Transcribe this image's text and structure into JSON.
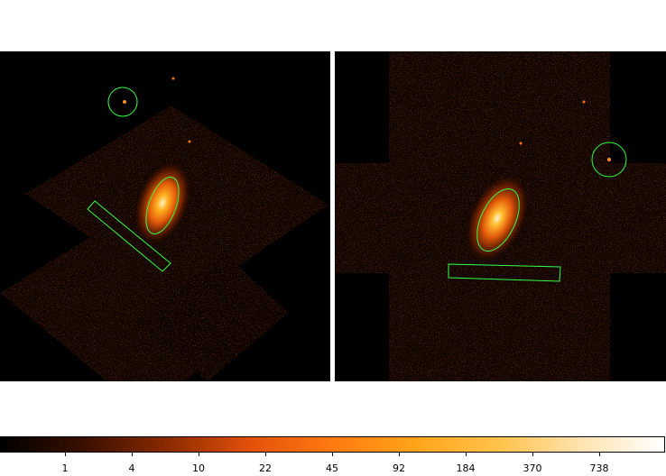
{
  "colorbar": {
    "ticks": [
      "1",
      "4",
      "10",
      "22",
      "45",
      "92",
      "184",
      "370",
      "738"
    ],
    "stops": [
      "#000000",
      "#3a1000",
      "#8a2a00",
      "#e2500a",
      "#ff7a10",
      "#ffa41a",
      "#ffc24a",
      "#ffe3b0",
      "#ffffff"
    ]
  },
  "regions": {
    "color": "#33ff44"
  }
}
